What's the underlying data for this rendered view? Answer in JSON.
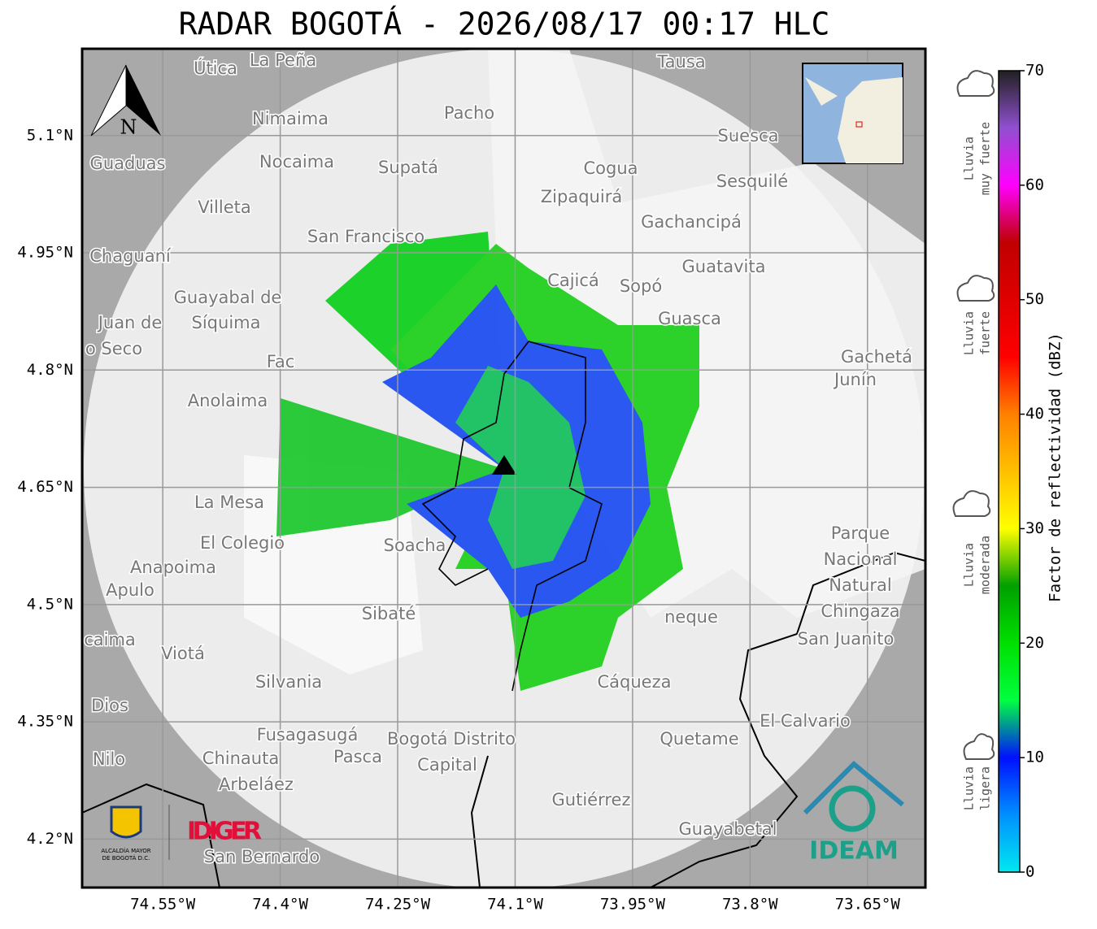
{
  "title": "RADAR BOGOTÁ - 2026/08/17 00:17 HLC",
  "map": {
    "lonlim": [
      -74.653,
      -73.576
    ],
    "latlim": [
      4.138,
      5.211
    ],
    "lon_ticks": [
      {
        "value": -74.55,
        "label": "74.55°W"
      },
      {
        "value": -74.4,
        "label": "74.4°W"
      },
      {
        "value": -74.25,
        "label": "74.25°W"
      },
      {
        "value": -74.1,
        "label": "74.1°W"
      },
      {
        "value": -73.95,
        "label": "73.95°W"
      },
      {
        "value": -73.8,
        "label": "73.8°W"
      },
      {
        "value": -73.65,
        "label": "73.65°W"
      }
    ],
    "lat_ticks": [
      {
        "value": 5.1,
        "label": "5.1°N"
      },
      {
        "value": 4.95,
        "label": "4.95°N"
      },
      {
        "value": 4.8,
        "label": "4.8°N"
      },
      {
        "value": 4.65,
        "label": "4.65°N"
      },
      {
        "value": 4.5,
        "label": "4.5°N"
      },
      {
        "value": 4.35,
        "label": "4.35°N"
      },
      {
        "value": 4.2,
        "label": "4.2°N"
      }
    ],
    "grid": true,
    "north": "N",
    "places": [
      "La Peña",
      "Útica",
      "Tausa",
      "Pacho",
      "Nimaima",
      "Suesca",
      "Guaduas",
      "Nocaima",
      "Supatá",
      "Cogua",
      "Sesquilé",
      "Zipaquirá",
      "Villeta",
      "Gachancipá",
      "San Francisco",
      "Chaguaní",
      "Guatavita",
      "Cajicá",
      "Sopó",
      "Guayabal de",
      "Síquima",
      "Juan de",
      "o Seco",
      "Guasca",
      "Fac",
      "Gachetá",
      "Junín",
      "Anolaima",
      "La Mesa",
      "Parque",
      "Nacional",
      "Natural",
      "Chingaza",
      "El Colegio",
      "Soacha",
      "Anapoima",
      "Apulo",
      "Sibaté",
      "neque",
      "San Juanito",
      "caima",
      "Viotá",
      "Silvania",
      "Cáqueza",
      "Dios",
      "El Calvario",
      "Fusagasugá",
      "Bogotá Distrito",
      "Quetame",
      "Chinauta",
      "Pasca",
      "Nilo",
      "Capital",
      "Arbeláez",
      "Gutiérrez",
      "Guayabetal",
      "San Bernardo"
    ],
    "logos": {
      "alcaldia": [
        "ALCALDÍA MAYOR",
        "DE BOGOTÁ D.C."
      ],
      "idiger": "IDIGER",
      "ideam": "IDEAM"
    }
  },
  "colorbar": {
    "label": "Factor de reflectividad (dBZ)",
    "lim": [
      0,
      70
    ],
    "ticks": [
      0,
      10,
      20,
      30,
      40,
      50,
      60,
      70
    ],
    "stops": [
      {
        "value": 0,
        "color": "#00e8f0"
      },
      {
        "value": 5,
        "color": "#0090ff"
      },
      {
        "value": 10,
        "color": "#0010ff"
      },
      {
        "value": 15,
        "color": "#00ff40"
      },
      {
        "value": 20,
        "color": "#00e000"
      },
      {
        "value": 25,
        "color": "#00a000"
      },
      {
        "value": 30,
        "color": "#ffff00"
      },
      {
        "value": 40,
        "color": "#ff8000"
      },
      {
        "value": 45,
        "color": "#ff0000"
      },
      {
        "value": 55,
        "color": "#c00000"
      },
      {
        "value": 60,
        "color": "#ff00ff"
      },
      {
        "value": 65,
        "color": "#9050d0"
      },
      {
        "value": 70,
        "color": "#202020"
      }
    ],
    "categories": [
      {
        "lines": [
          "Lluvia",
          "muy fuerte"
        ]
      },
      {
        "lines": [
          "Lluvia",
          "fuerte"
        ]
      },
      {
        "lines": [
          "Lluvia",
          "moderada"
        ]
      },
      {
        "lines": [
          "Lluvia",
          "ligera"
        ]
      }
    ]
  }
}
